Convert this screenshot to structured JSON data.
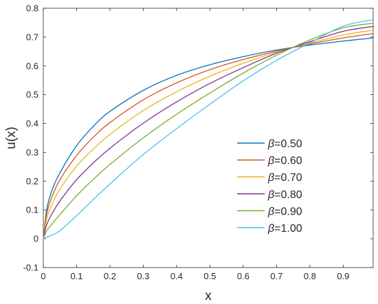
{
  "chart_data": {
    "type": "line",
    "title": "",
    "xlabel": "x",
    "ylabel": "u(x)",
    "xlim": [
      0,
      0.99
    ],
    "ylim": [
      -0.1,
      0.8
    ],
    "grid": false,
    "legend_position": "lower-right",
    "xticks": [
      "0",
      "0.1",
      "0.2",
      "0.3",
      "0.4",
      "0.5",
      "0.6",
      "0.7",
      "0.8",
      "0.9"
    ],
    "yticks": [
      "-0.1",
      "0",
      "0.1",
      "0.2",
      "0.3",
      "0.4",
      "0.5",
      "0.6",
      "0.7",
      "0.8"
    ],
    "x": [
      0,
      0.01,
      0.025,
      0.05,
      0.1,
      0.15,
      0.2,
      0.3,
      0.4,
      0.5,
      0.6,
      0.7,
      0.8,
      0.9,
      0.99
    ],
    "series": [
      {
        "name": "=0.50",
        "beta_symbol": "β",
        "color": "#0072BD",
        "values": [
          0,
          0.1,
          0.165,
          0.229,
          0.323,
          0.39,
          0.442,
          0.515,
          0.567,
          0.604,
          0.632,
          0.655,
          0.672,
          0.686,
          0.697
        ]
      },
      {
        "name": "=0.60",
        "beta_symbol": "β",
        "color": "#D95319",
        "values": [
          0,
          0.085,
          0.143,
          0.205,
          0.289,
          0.352,
          0.403,
          0.482,
          0.541,
          0.587,
          0.622,
          0.651,
          0.676,
          0.697,
          0.712
        ]
      },
      {
        "name": "=0.70",
        "beta_symbol": "β",
        "color": "#EDB120",
        "values": [
          0,
          0.068,
          0.117,
          0.172,
          0.252,
          0.311,
          0.362,
          0.445,
          0.51,
          0.564,
          0.609,
          0.648,
          0.679,
          0.707,
          0.724
        ]
      },
      {
        "name": "=0.80",
        "beta_symbol": "β",
        "color": "#7E2F8E",
        "values": [
          0,
          0.048,
          0.085,
          0.131,
          0.205,
          0.263,
          0.314,
          0.401,
          0.475,
          0.539,
          0.594,
          0.644,
          0.684,
          0.72,
          0.737
        ]
      },
      {
        "name": "=0.90",
        "beta_symbol": "β",
        "color": "#77AC30",
        "values": [
          0,
          0.027,
          0.05,
          0.084,
          0.149,
          0.206,
          0.258,
          0.35,
          0.432,
          0.506,
          0.575,
          0.637,
          0.69,
          0.732,
          0.748
        ]
      },
      {
        "name": "=1.00",
        "beta_symbol": "β",
        "color": "#4DBEEE",
        "values": [
          0,
          0.005,
          0.012,
          0.028,
          0.08,
          0.136,
          0.19,
          0.292,
          0.382,
          0.467,
          0.548,
          0.619,
          0.68,
          0.738,
          0.76
        ]
      }
    ]
  }
}
